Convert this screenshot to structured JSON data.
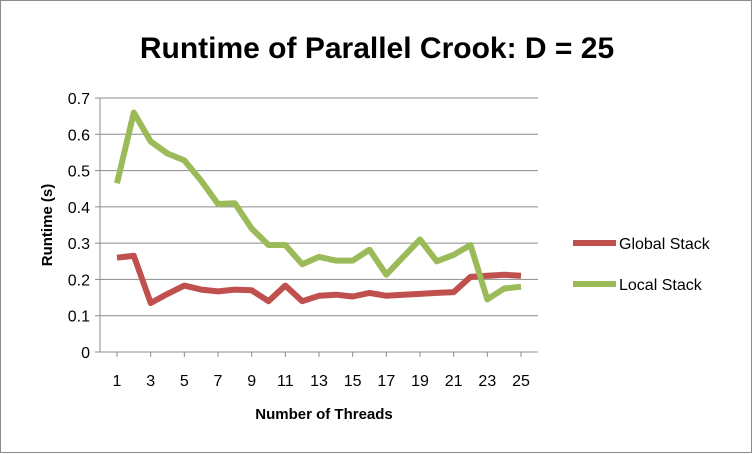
{
  "chart_data": {
    "type": "line",
    "title": "Runtime of Parallel Crook: D = 25",
    "xlabel": "Number of Threads",
    "ylabel": "Runtime (s)",
    "x": [
      1,
      2,
      3,
      4,
      5,
      6,
      7,
      8,
      9,
      10,
      11,
      12,
      13,
      14,
      15,
      16,
      17,
      18,
      19,
      20,
      21,
      22,
      23,
      24,
      25
    ],
    "x_tick_labels": [
      "1",
      "3",
      "5",
      "7",
      "9",
      "11",
      "13",
      "15",
      "17",
      "19",
      "21",
      "23",
      "25"
    ],
    "y_tick_labels": [
      "0",
      "0.1",
      "0.2",
      "0.3",
      "0.4",
      "0.5",
      "0.6",
      "0.7"
    ],
    "ylim": [
      0,
      0.7
    ],
    "grid": "horizontal",
    "legend_position": "right",
    "series": [
      {
        "name": "Global Stack",
        "color": "#c0504d",
        "values": [
          0.26,
          0.265,
          0.135,
          0.16,
          0.183,
          0.172,
          0.167,
          0.172,
          0.17,
          0.14,
          0.183,
          0.14,
          0.155,
          0.158,
          0.153,
          0.163,
          0.155,
          0.158,
          0.16,
          0.163,
          0.165,
          0.207,
          0.21,
          0.213,
          0.21
        ]
      },
      {
        "name": "Local Stack",
        "color": "#9bbb59",
        "values": [
          0.465,
          0.66,
          0.58,
          0.547,
          0.528,
          0.472,
          0.408,
          0.41,
          0.34,
          0.295,
          0.295,
          0.242,
          0.262,
          0.252,
          0.252,
          0.282,
          0.213,
          0.262,
          0.31,
          0.25,
          0.268,
          0.295,
          0.145,
          0.175,
          0.18
        ]
      }
    ]
  }
}
